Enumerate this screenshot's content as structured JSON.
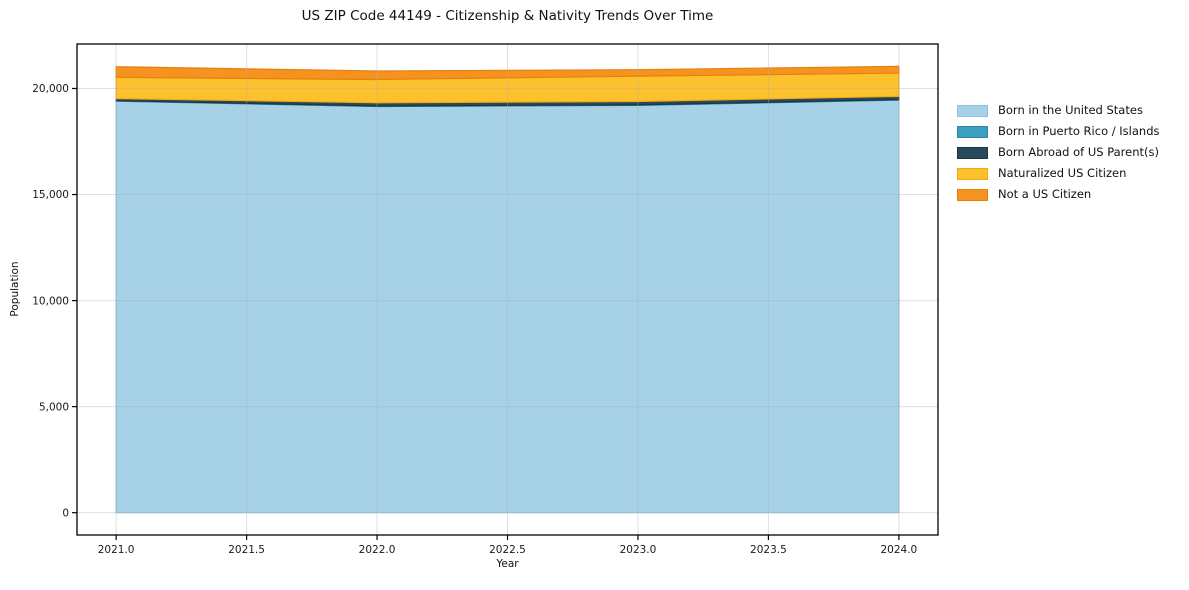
{
  "figure": {
    "title": "US ZIP Code 44149 - Citizenship & Nativity Trends Over Time",
    "xlabel": "Year",
    "ylabel": "Population",
    "background_color": "#ffffff"
  },
  "chart_data": {
    "type": "area",
    "stacked": true,
    "title": "US ZIP Code 44149 - Citizenship & Nativity Trends Over Time",
    "xlabel": "Year",
    "ylabel": "Population",
    "x": [
      2021,
      2022,
      2023,
      2024
    ],
    "series": [
      {
        "name": "Born in the United States",
        "color": "#a6d1e6",
        "edge": "#8ec2da",
        "values": [
          19400,
          19150,
          19200,
          19450
        ]
      },
      {
        "name": "Born in Puerto Rico / Islands",
        "color": "#3a9fc1",
        "edge": "#31869f",
        "values": [
          25,
          25,
          25,
          25
        ]
      },
      {
        "name": "Born Abroad of US Parent(s)",
        "color": "#28495c",
        "edge": "#1c3644",
        "values": [
          100,
          150,
          160,
          150
        ]
      },
      {
        "name": "Naturalized US Citizen",
        "color": "#fcc12d",
        "edge": "#f0ab12",
        "values": [
          1000,
          1100,
          1200,
          1100
        ]
      },
      {
        "name": "Not a US Citizen",
        "color": "#f69320",
        "edge": "#e5810e",
        "values": [
          500,
          400,
          300,
          320
        ]
      }
    ],
    "xticks": {
      "values": [
        2021.0,
        2021.5,
        2022.0,
        2022.5,
        2023.0,
        2023.5,
        2024.0
      ],
      "labels": [
        "2021.0",
        "2021.5",
        "2022.0",
        "2022.5",
        "2023.0",
        "2023.5",
        "2024.0"
      ]
    },
    "yticks": {
      "values": [
        0,
        5000,
        10000,
        15000,
        20000
      ],
      "labels": [
        "0",
        "5,000",
        "10,000",
        "15,000",
        "20,000"
      ]
    },
    "xlim": [
      2020.85,
      2024.15
    ],
    "ylim": [
      -1052,
      22097
    ],
    "grid": true,
    "grid_color": "rgba(176,176,176,0.4)",
    "spine_color": "#000000",
    "legend_position": "right-outside"
  }
}
